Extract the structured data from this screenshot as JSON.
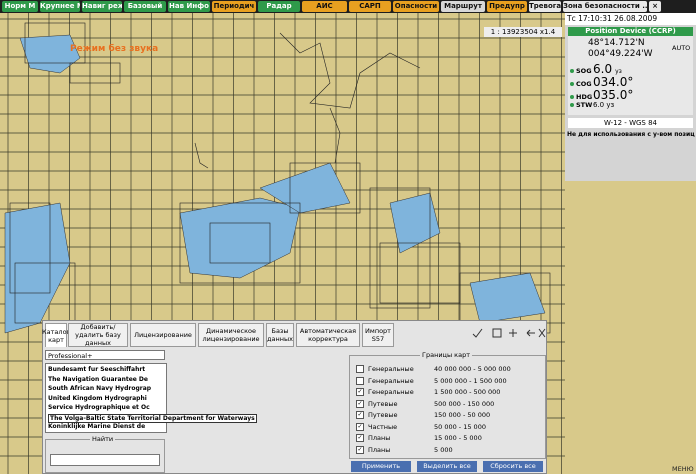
{
  "toolbar": {
    "buttons": [
      {
        "label": "Норм М",
        "color": "#2f9a4a"
      },
      {
        "label": "Крупнее М",
        "color": "#2f9a4a"
      },
      {
        "label": "Навиг реж",
        "color": "#2f9a4a"
      },
      {
        "label": "Базовый",
        "color": "#2f9a4a"
      },
      {
        "label": "Нав Инфо",
        "color": "#2f9a4a"
      },
      {
        "label": "Периодич",
        "color": "#e8a020"
      },
      {
        "label": "Радар",
        "color": "#2f9a4a"
      },
      {
        "label": "АИС",
        "color": "#e8a020"
      },
      {
        "label": "САРП",
        "color": "#e8a020"
      },
      {
        "label": "Опасности",
        "color": "#e8a020"
      },
      {
        "label": "Маршрут",
        "color": "#d8d8d8"
      },
      {
        "label": "Предупр",
        "color": "#e8a020"
      },
      {
        "label": "Тревога",
        "color": "#e8e8e8"
      },
      {
        "label": "Зона безопасности ...",
        "color": "#e8e8e8"
      },
      {
        "label": "×",
        "color": "#e8e8e8"
      }
    ]
  },
  "map": {
    "scale": "1 : 13923504  x1.4",
    "notice": "Режим без звука"
  },
  "position": {
    "time": "Тс 17:10:31  26.08.2009",
    "device": "Position Device (CCRP)",
    "lat": "48°14.712'N",
    "lon": "004°49.224'W",
    "mode": "AUTO",
    "rows": [
      {
        "name": "SOG",
        "value": "6.0",
        "unit": "уз"
      },
      {
        "name": "COG",
        "value": "034.0°",
        "unit": ""
      },
      {
        "name": "HDG",
        "value": "035.0°",
        "unit": ""
      },
      {
        "name": "STW",
        "value": "6.0 уз",
        "unit": ""
      }
    ],
    "datum": "W-12 - WGS 84",
    "warning": "Не для использования с у-вом позиц"
  },
  "dialog": {
    "tabs": [
      "Каталог карт",
      "Добавить/удалить базу данных",
      "Лицензирование",
      "Динамическое лицензирование",
      "Базы данных",
      "Автоматическая корректура",
      "Импорт S57"
    ],
    "dropdown": "Professional+",
    "list": [
      "Bundesamt fur Seeschiffahrt",
      "The Navigation Guarantee De",
      "South African Navy Hydrograp",
      "United Kingdom Hydrographi",
      "Service Hydrographique et Oc",
      "The Volga-Baltic State Territorial Department for Waterways",
      "Koninklijke Marine Dienst de"
    ],
    "find": "Найти",
    "group": "Границы карт",
    "bounds": [
      {
        "name": "Генеральные",
        "range": "40 000 000 - 5 000 000",
        "checked": false
      },
      {
        "name": "Генеральные",
        "range": "5 000 000 - 1 500 000",
        "checked": false
      },
      {
        "name": "Генеральные",
        "range": "1 500 000 - 500 000",
        "checked": true
      },
      {
        "name": "Путевые",
        "range": "500 000 - 150 000",
        "checked": true
      },
      {
        "name": "Путевые",
        "range": "150 000 - 50 000",
        "checked": true
      },
      {
        "name": "Частные",
        "range": "50 000 - 15 000",
        "checked": true
      },
      {
        "name": "Планы",
        "range": "15 000 - 5 000",
        "checked": true
      },
      {
        "name": "Планы",
        "range": "5 000",
        "checked": true
      }
    ],
    "buttons": [
      "Применить",
      "Выделить все",
      "Сбросить все"
    ]
  },
  "menu": "МЕНЮ"
}
